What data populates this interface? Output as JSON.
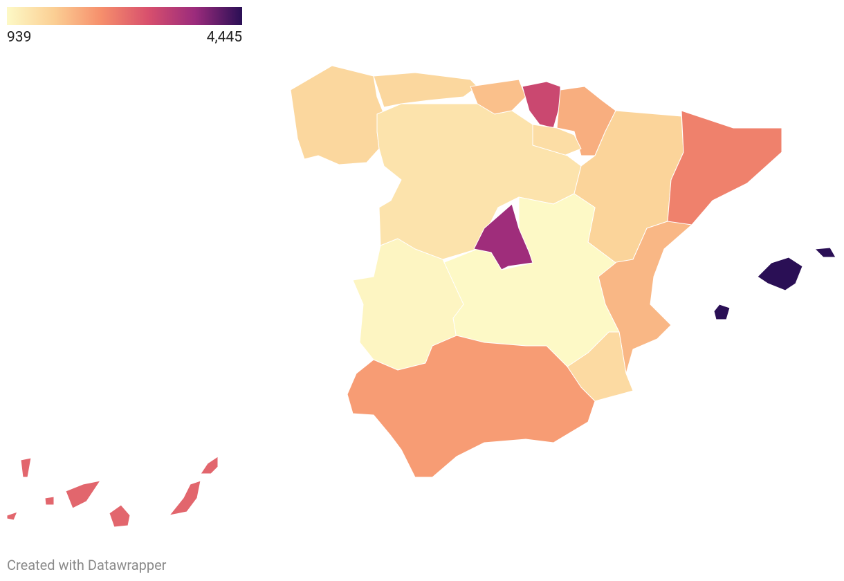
{
  "legend": {
    "min": {
      "value": 939,
      "label": "939"
    },
    "max": {
      "value": 4445,
      "label": "4,445"
    },
    "colors": [
      "#fdf9c6",
      "#fbcf94",
      "#f68f6c",
      "#d8506d",
      "#9b2b7c",
      "#2a0f55"
    ]
  },
  "regions": {
    "values": [
      1500,
      1500,
      1800,
      3200,
      2000,
      1400,
      1300,
      1550,
      2500,
      1900,
      1450,
      3700,
      939,
      1000,
      2200,
      4445,
      2800
    ]
  },
  "footer": "Created with Datawrapper"
}
